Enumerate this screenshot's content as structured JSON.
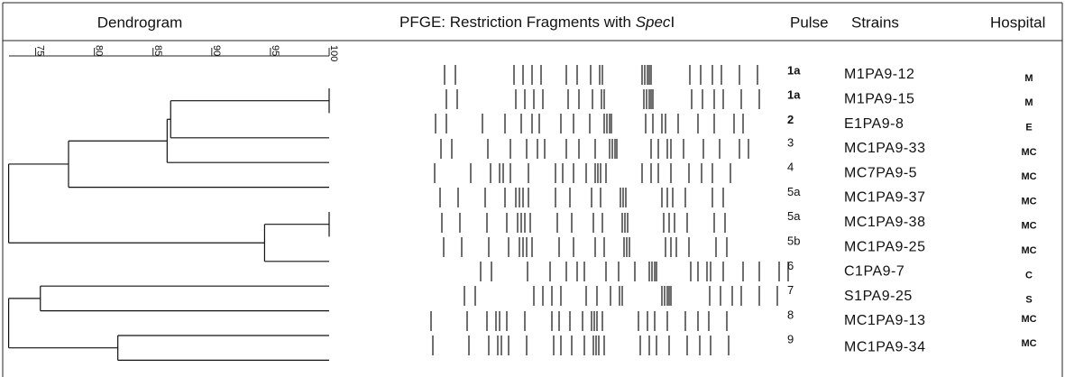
{
  "header": {
    "dendrogram": "Dendrogram",
    "pfge_prefix": "PFGE: Restriction Fragments with ",
    "pfge_enzyme": "Spec",
    "pfge_suffix": "I",
    "pulse": "Pulse",
    "strains": "Strains",
    "hospital": "Hospital"
  },
  "dendrogram": {
    "xlim": [
      72.5,
      100
    ],
    "xticks": [
      75,
      80,
      85,
      90,
      95,
      100
    ],
    "merges": [
      {
        "children": [
          0,
          1
        ],
        "height": 100
      },
      {
        "children": [
          12,
          2
        ],
        "height": 86.5
      },
      {
        "children": [
          13,
          3
        ],
        "height": 86.2
      },
      {
        "children": [
          14,
          4
        ],
        "height": 77.8
      },
      {
        "children": [
          5,
          6
        ],
        "height": 100
      },
      {
        "children": [
          16,
          7
        ],
        "height": 94.5
      },
      {
        "children": [
          15,
          17
        ],
        "height": 72.7
      },
      {
        "children": [
          8,
          9
        ],
        "height": 75.4
      },
      {
        "children": [
          10,
          11
        ],
        "height": 82
      },
      {
        "children": [
          19,
          20
        ],
        "height": 72.7
      }
    ]
  },
  "rows": [
    {
      "pulse": "1a",
      "strain": "M1PA9-12",
      "hospital": "M"
    },
    {
      "pulse": "1a",
      "strain": "M1PA9-15",
      "hospital": "M"
    },
    {
      "pulse": "2",
      "strain": "E1PA9-8",
      "hospital": "E"
    },
    {
      "pulse": "3",
      "strain": "MC1PA9-33",
      "hospital": "MC"
    },
    {
      "pulse": "4",
      "strain": "MC7PA9-5",
      "hospital": "MC"
    },
    {
      "pulse": "5a",
      "strain": "MC1PA9-37",
      "hospital": "MC"
    },
    {
      "pulse": "5a",
      "strain": "MC1PA9-38",
      "hospital": "MC"
    },
    {
      "pulse": "5b",
      "strain": "MC1PA9-25",
      "hospital": "MC"
    },
    {
      "pulse": "6",
      "strain": "C1PA9-7",
      "hospital": "C"
    },
    {
      "pulse": "7",
      "strain": "S1PA9-25",
      "hospital": "S"
    },
    {
      "pulse": "8",
      "strain": "MC1PA9-13",
      "hospital": "MC"
    },
    {
      "pulse": "9",
      "strain": "MC1PA9-34",
      "hospital": "MC"
    }
  ]
}
